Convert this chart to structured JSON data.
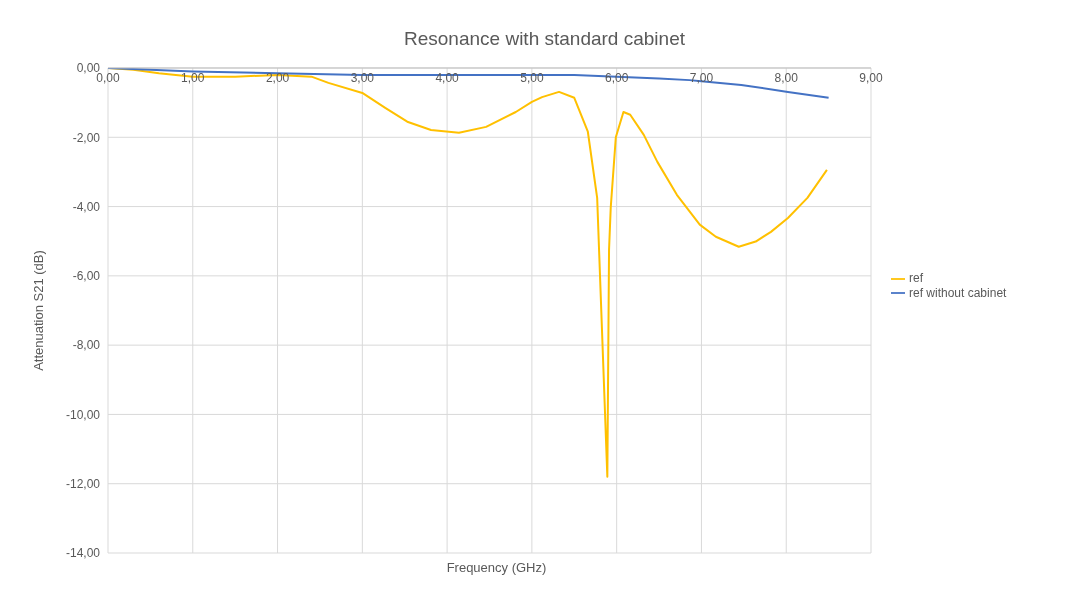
{
  "chart_data": {
    "type": "line",
    "title": "Resonance with standard cabinet",
    "xlabel": "Frequency (GHz)",
    "ylabel": "Attenuation S21 (dB)",
    "xlim": [
      0,
      9
    ],
    "xticks": [
      {
        "value": 0,
        "label": "0,00"
      },
      {
        "value": 1,
        "label": "1,00"
      },
      {
        "value": 2,
        "label": "2,00"
      },
      {
        "value": 3,
        "label": "3,00"
      },
      {
        "value": 4,
        "label": "4,00"
      },
      {
        "value": 5,
        "label": "5,00"
      },
      {
        "value": 6,
        "label": "6,00"
      },
      {
        "value": 7,
        "label": "7,00"
      },
      {
        "value": 8,
        "label": "8,00"
      },
      {
        "value": 9,
        "label": "9,00"
      }
    ],
    "ylim": [
      -14,
      0
    ],
    "yticks": [
      {
        "value": -14,
        "label": "-14,00"
      },
      {
        "value": -12,
        "label": "-12,00"
      },
      {
        "value": -10,
        "label": "-10,00"
      },
      {
        "value": -8,
        "label": "-8,00"
      },
      {
        "value": -6,
        "label": "-6,00"
      },
      {
        "value": -4,
        "label": "-4,00"
      },
      {
        "value": -2,
        "label": "-2,00"
      },
      {
        "value": 0,
        "label": "0,00"
      }
    ],
    "grid": true,
    "legend": "right",
    "marker": "none",
    "line_style": "solid",
    "series": [
      {
        "name": "ref",
        "color": "#ffc000",
        "x": [
          0,
          0.3,
          0.6,
          1.0,
          1.5,
          2.0,
          2.4,
          2.6,
          3.0,
          3.27,
          3.53,
          3.81,
          4.14,
          4.46,
          4.81,
          5.0,
          5.12,
          5.32,
          5.5,
          5.66,
          5.77,
          5.89,
          5.91,
          5.93,
          5.99,
          6.08,
          6.16,
          6.32,
          6.48,
          6.71,
          6.98,
          7.17,
          7.44,
          7.64,
          7.82,
          8.02,
          8.25,
          8.48
        ],
        "values": [
          0,
          -0.05,
          -0.15,
          -0.25,
          -0.25,
          -0.2,
          -0.25,
          -0.43,
          -0.72,
          -1.15,
          -1.55,
          -1.79,
          -1.87,
          -1.7,
          -1.27,
          -0.98,
          -0.84,
          -0.69,
          -0.86,
          -1.84,
          -3.75,
          -11.8,
          -5.25,
          -4.03,
          -2.0,
          -1.27,
          -1.35,
          -1.93,
          -2.71,
          -3.66,
          -4.52,
          -4.87,
          -5.16,
          -5.01,
          -4.73,
          -4.33,
          -3.75,
          -2.94
        ]
      },
      {
        "name": "ref without cabinet",
        "color": "#4472c4",
        "x": [
          0,
          0.5,
          1.0,
          2.0,
          3.0,
          4.0,
          5.0,
          5.5,
          6.0,
          6.5,
          6.86,
          7.0,
          7.47,
          8.02,
          8.5
        ],
        "values": [
          0,
          -0.05,
          -0.1,
          -0.15,
          -0.2,
          -0.2,
          -0.2,
          -0.2,
          -0.25,
          -0.3,
          -0.35,
          -0.38,
          -0.49,
          -0.69,
          -0.86
        ]
      }
    ]
  }
}
